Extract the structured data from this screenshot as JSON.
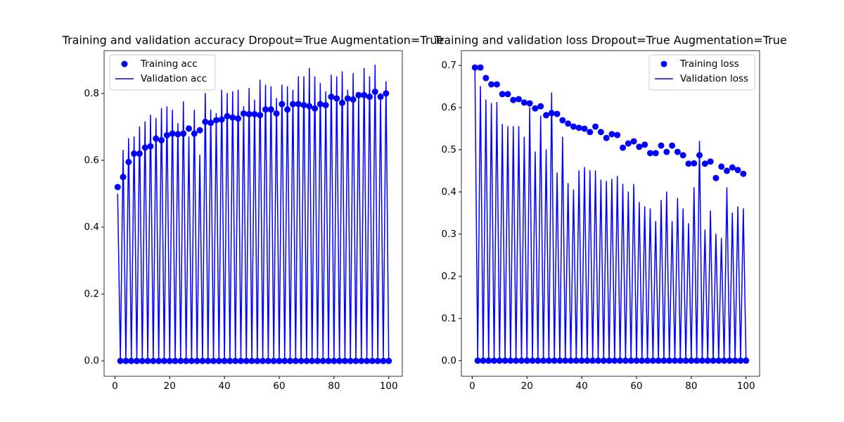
{
  "chart_data": [
    {
      "type": "line",
      "title": "Training and validation accuracy Dropout=True Augmentation=True",
      "x": [
        1,
        2,
        3,
        4,
        5,
        6,
        7,
        8,
        9,
        10,
        11,
        12,
        13,
        14,
        15,
        16,
        17,
        18,
        19,
        20,
        21,
        22,
        23,
        24,
        25,
        26,
        27,
        28,
        29,
        30,
        31,
        32,
        33,
        34,
        35,
        36,
        37,
        38,
        39,
        40,
        41,
        42,
        43,
        44,
        45,
        46,
        47,
        48,
        49,
        50,
        51,
        52,
        53,
        54,
        55,
        56,
        57,
        58,
        59,
        60,
        61,
        62,
        63,
        64,
        65,
        66,
        67,
        68,
        69,
        70,
        71,
        72,
        73,
        74,
        75,
        76,
        77,
        78,
        79,
        80,
        81,
        82,
        83,
        84,
        85,
        86,
        87,
        88,
        89,
        90,
        91,
        92,
        93,
        94,
        95,
        96,
        97,
        98,
        99,
        100
      ],
      "series": [
        {
          "name": "Training acc",
          "color": "#0000ff",
          "style": "dots",
          "values": [
            0.52,
            0,
            0.55,
            0,
            0.595,
            0,
            0.62,
            0,
            0.62,
            0,
            0.638,
            0,
            0.642,
            0,
            0.665,
            0,
            0.66,
            0,
            0.675,
            0,
            0.68,
            0,
            0.678,
            0,
            0.68,
            0,
            0.695,
            0,
            0.68,
            0,
            0.69,
            0,
            0.715,
            0,
            0.712,
            0,
            0.72,
            0,
            0.722,
            0,
            0.732,
            0,
            0.728,
            0,
            0.725,
            0,
            0.74,
            0,
            0.738,
            0,
            0.738,
            0,
            0.735,
            0,
            0.752,
            0,
            0.752,
            0,
            0.74,
            0,
            0.768,
            0,
            0.752,
            0,
            0.768,
            0,
            0.768,
            0,
            0.765,
            0,
            0.762,
            0,
            0.755,
            0,
            0.768,
            0,
            0.765,
            0,
            0.79,
            0,
            0.785,
            0,
            0.772,
            0,
            0.785,
            0,
            0.782,
            0,
            0.795,
            0,
            0.795,
            0,
            0.79,
            0,
            0.805,
            0,
            0.79,
            0,
            0.8,
            0
          ]
        },
        {
          "name": "Validation acc",
          "color": "#0000ff",
          "style": "line",
          "values": [
            0.5,
            0,
            0.63,
            0,
            0.665,
            0,
            0.67,
            0,
            0.7,
            0,
            0.715,
            0,
            0.735,
            0,
            0.725,
            0,
            0.755,
            0,
            0.76,
            0,
            0.75,
            0,
            0.71,
            0,
            0.775,
            0,
            0.67,
            0,
            0.75,
            0,
            0.615,
            0,
            0.8,
            0,
            0.75,
            0,
            0.74,
            0,
            0.81,
            0,
            0.8,
            0,
            0.805,
            0,
            0.81,
            0,
            0.76,
            0,
            0.815,
            0,
            0.78,
            0,
            0.84,
            0,
            0.825,
            0,
            0.82,
            0,
            0.785,
            0,
            0.825,
            0,
            0.82,
            0,
            0.81,
            0,
            0.85,
            0,
            0.85,
            0,
            0.875,
            0,
            0.85,
            0,
            0.83,
            0,
            0.805,
            0,
            0.855,
            0,
            0.85,
            0,
            0.865,
            0,
            0.81,
            0,
            0.86,
            0,
            0.8,
            0,
            0.875,
            0,
            0.85,
            0,
            0.885,
            0,
            0.8,
            0,
            0.835,
            0
          ]
        }
      ],
      "xlim": [
        -3.95,
        104.95
      ],
      "xticks": [
        0,
        20,
        40,
        60,
        80,
        100
      ],
      "ylim": [
        -0.046,
        0.928
      ],
      "yticks": [
        {
          "value": 0,
          "label": "0.0"
        },
        0.2,
        0.4,
        0.6,
        0.8
      ],
      "legend": "upper left"
    },
    {
      "type": "line",
      "title": "Training and validation loss Dropout=True Augmentation=True",
      "x": [
        1,
        2,
        3,
        4,
        5,
        6,
        7,
        8,
        9,
        10,
        11,
        12,
        13,
        14,
        15,
        16,
        17,
        18,
        19,
        20,
        21,
        22,
        23,
        24,
        25,
        26,
        27,
        28,
        29,
        30,
        31,
        32,
        33,
        34,
        35,
        36,
        37,
        38,
        39,
        40,
        41,
        42,
        43,
        44,
        45,
        46,
        47,
        48,
        49,
        50,
        51,
        52,
        53,
        54,
        55,
        56,
        57,
        58,
        59,
        60,
        61,
        62,
        63,
        64,
        65,
        66,
        67,
        68,
        69,
        70,
        71,
        72,
        73,
        74,
        75,
        76,
        77,
        78,
        79,
        80,
        81,
        82,
        83,
        84,
        85,
        86,
        87,
        88,
        89,
        90,
        91,
        92,
        93,
        94,
        95,
        96,
        97,
        98,
        99,
        100
      ],
      "series": [
        {
          "name": "Training loss",
          "color": "#0000ff",
          "style": "dots",
          "values": [
            0.695,
            0,
            0.695,
            0,
            0.67,
            0,
            0.655,
            0,
            0.655,
            0,
            0.632,
            0,
            0.632,
            0,
            0.618,
            0,
            0.62,
            0,
            0.612,
            0,
            0.61,
            0,
            0.598,
            0,
            0.603,
            0,
            0.582,
            0,
            0.587,
            0,
            0.585,
            0,
            0.57,
            0,
            0.562,
            0,
            0.555,
            0,
            0.552,
            0,
            0.55,
            0,
            0.542,
            0,
            0.555,
            0,
            0.542,
            0,
            0.528,
            0,
            0.537,
            0,
            0.535,
            0,
            0.505,
            0,
            0.515,
            0,
            0.52,
            0,
            0.507,
            0,
            0.512,
            0,
            0.492,
            0,
            0.492,
            0,
            0.51,
            0,
            0.495,
            0,
            0.51,
            0,
            0.495,
            0,
            0.487,
            0,
            0.467,
            0,
            0.468,
            0,
            0.487,
            0,
            0.467,
            0,
            0.472,
            0,
            0.433,
            0,
            0.46,
            0,
            0.45,
            0,
            0.458,
            0,
            0.452,
            0,
            0.443,
            0
          ]
        },
        {
          "name": "Validation loss",
          "color": "#0000ff",
          "style": "line",
          "values": [
            0.69,
            0,
            0.65,
            0,
            0.618,
            0,
            0.61,
            0,
            0.612,
            0,
            0.56,
            0,
            0.555,
            0,
            0.555,
            0,
            0.555,
            0,
            0.53,
            0,
            0.6,
            0,
            0.495,
            0,
            0.58,
            0,
            0.5,
            0,
            0.635,
            0,
            0.445,
            0,
            0.53,
            0,
            0.42,
            0,
            0.405,
            0,
            0.45,
            0,
            0.458,
            0,
            0.45,
            0,
            0.45,
            0,
            0.428,
            0,
            0.425,
            0,
            0.43,
            0,
            0.437,
            0,
            0.418,
            0,
            0.4,
            0,
            0.418,
            0,
            0.375,
            0,
            0.365,
            0,
            0.36,
            0,
            0.33,
            0,
            0.38,
            0,
            0.4,
            0,
            0.33,
            0,
            0.385,
            0,
            0.36,
            0,
            0.325,
            0,
            0.41,
            0,
            0.52,
            0,
            0.31,
            0,
            0.355,
            0,
            0.3,
            0,
            0.29,
            0,
            0.41,
            0,
            0.35,
            0,
            0.365,
            0,
            0.36,
            0
          ]
        }
      ],
      "xlim": [
        -3.95,
        104.95
      ],
      "xticks": [
        0,
        20,
        40,
        60,
        80,
        100
      ],
      "ylim": [
        -0.037,
        0.735
      ],
      "yticks": [
        {
          "value": 0,
          "label": "0.0"
        },
        0.1,
        0.2,
        0.3,
        0.4,
        0.5,
        0.6,
        0.7
      ],
      "legend": "upper right"
    }
  ]
}
